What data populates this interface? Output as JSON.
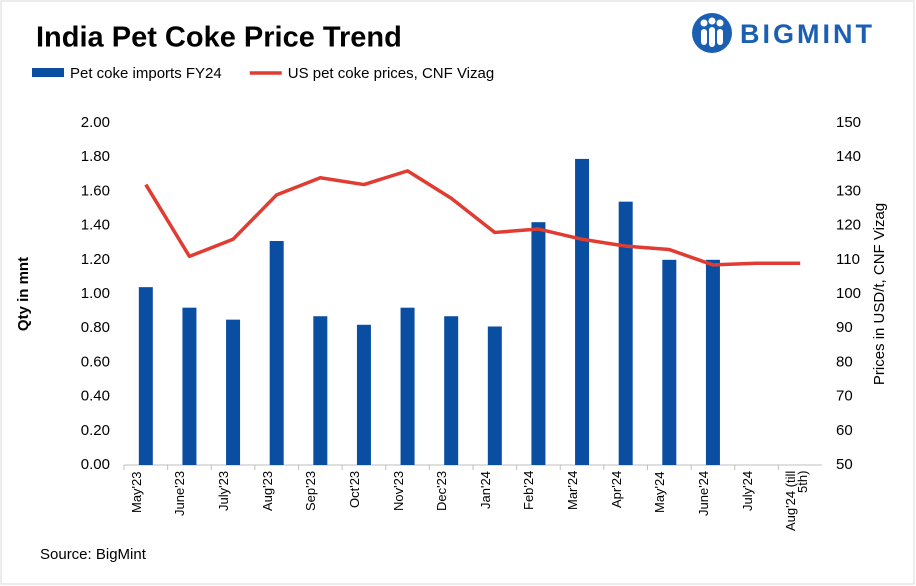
{
  "chart_data": {
    "type": "bar-line",
    "title": "India Pet Coke Price Trend",
    "brand": "BIGMINT",
    "source": "Source: BigMint",
    "categories": [
      "May'23",
      "June'23",
      "July'23",
      "Aug'23",
      "Sep'23",
      "Oct'23",
      "Nov'23",
      "Dec'23",
      "Jan'24",
      "Feb'24",
      "Mar'24",
      "Apr'24",
      "May'24",
      "June'24",
      "July'24",
      "Aug'24 (till 5th)"
    ],
    "series": [
      {
        "name": "Pet coke imports FY24",
        "type": "bar",
        "color": "#0a4ea2",
        "values": [
          1.04,
          0.92,
          0.85,
          1.31,
          0.87,
          0.82,
          0.92,
          0.87,
          0.81,
          1.42,
          1.79,
          1.54,
          1.2,
          1.2,
          null,
          null
        ]
      },
      {
        "name": "US pet coke prices, CNF Vizag",
        "type": "line",
        "axis": "y2",
        "color": "#e03c31",
        "values": [
          132,
          111,
          116,
          129,
          134,
          132,
          136,
          128,
          118,
          119,
          116,
          114,
          113,
          108.5,
          109,
          109
        ]
      }
    ],
    "y_label": "Qty in mnt",
    "y2_label": "Prices in USD/t, CNF Vizag",
    "ylim": [
      0,
      2
    ],
    "yticks": [
      {
        "value": 0,
        "label": "0.00"
      },
      {
        "value": 0.2,
        "label": "0.20"
      },
      {
        "value": 0.4,
        "label": "0.40"
      },
      {
        "value": 0.6,
        "label": "0.60"
      },
      {
        "value": 0.8,
        "label": "0.80"
      },
      {
        "value": 1,
        "label": "1.00"
      },
      {
        "value": 1.2,
        "label": "1.20"
      },
      {
        "value": 1.4,
        "label": "1.40"
      },
      {
        "value": 1.6,
        "label": "1.60"
      },
      {
        "value": 1.8,
        "label": "1.80"
      },
      {
        "value": 2,
        "label": "2.00"
      }
    ],
    "y2lim": [
      50,
      150
    ],
    "y2ticks": [
      50,
      60,
      70,
      80,
      90,
      100,
      110,
      120,
      130,
      140,
      150
    ]
  }
}
